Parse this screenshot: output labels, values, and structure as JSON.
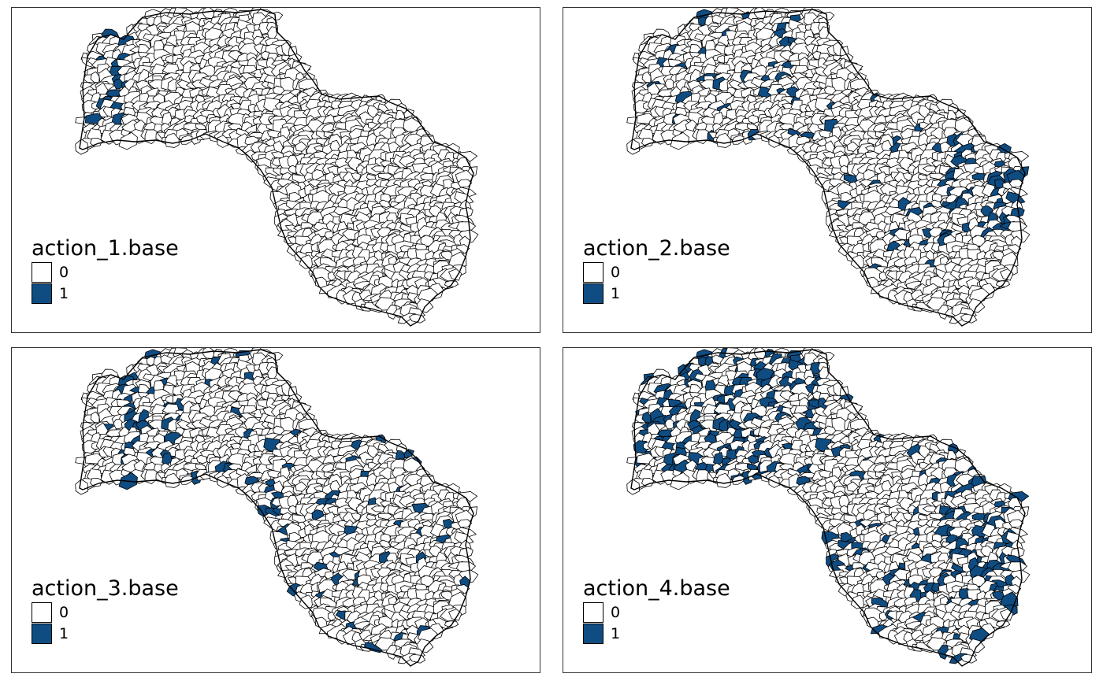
{
  "colors": {
    "selected": "#0f4c81",
    "unselected": "#ffffff",
    "outline": "#000000"
  },
  "panels": [
    {
      "title": "action_1.base",
      "legend": [
        {
          "label": "0",
          "value": 0
        },
        {
          "label": "1",
          "value": 1
        }
      ]
    },
    {
      "title": "action_2.base",
      "legend": [
        {
          "label": "0",
          "value": 0
        },
        {
          "label": "1",
          "value": 1
        }
      ]
    },
    {
      "title": "action_3.base",
      "legend": [
        {
          "label": "0",
          "value": 0
        },
        {
          "label": "1",
          "value": 1
        }
      ]
    },
    {
      "title": "action_4.base",
      "legend": [
        {
          "label": "0",
          "value": 0
        },
        {
          "label": "1",
          "value": 1
        }
      ]
    }
  ]
}
